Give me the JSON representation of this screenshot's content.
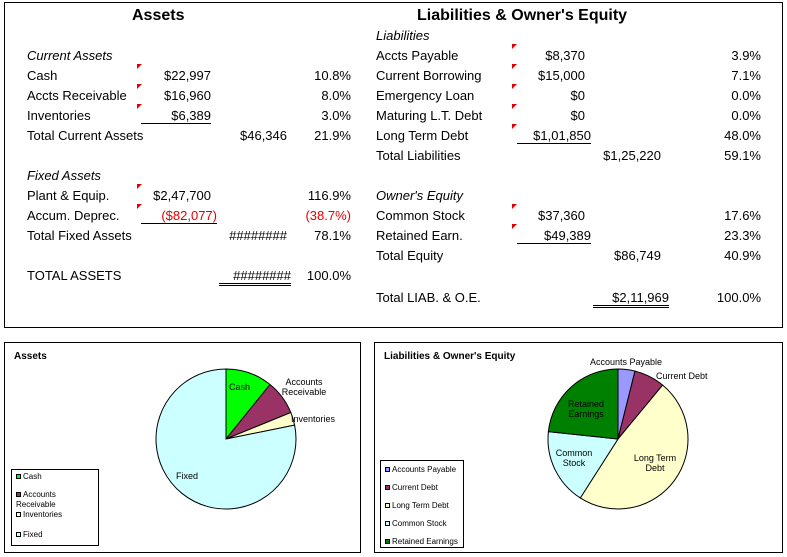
{
  "assets": {
    "title": "Assets",
    "current_header": "Current Assets",
    "rows": [
      {
        "label": "Cash",
        "value": "$22,997",
        "pct": "10.8%"
      },
      {
        "label": "Accts Receivable",
        "value": "$16,960",
        "pct": "8.0%"
      },
      {
        "label": "Inventories",
        "value": "$6,389",
        "pct": "3.0%"
      }
    ],
    "total_current": {
      "label": "Total Current Assets",
      "value": "$46,346",
      "pct": "21.9%"
    },
    "fixed_header": "Fixed Assets",
    "fixed_rows": [
      {
        "label": "Plant & Equip.",
        "value": "$2,47,700",
        "pct": "116.9%"
      },
      {
        "label": "Accum. Deprec.",
        "value": "($82,077)",
        "pct": "(38.7%)"
      }
    ],
    "total_fixed": {
      "label": "Total Fixed Assets",
      "value": "########",
      "pct": "78.1%"
    },
    "total_assets": {
      "label": "TOTAL ASSETS",
      "value": "########",
      "pct": "100.0%"
    }
  },
  "liabilities": {
    "title": "Liabilities & Owner's Equity",
    "liab_header": "Liabilities",
    "rows": [
      {
        "label": "Accts Payable",
        "value": "$8,370",
        "pct": "3.9%"
      },
      {
        "label": "Current Borrowing",
        "value": "$15,000",
        "pct": "7.1%"
      },
      {
        "label": "Emergency Loan",
        "value": "$0",
        "pct": "0.0%"
      },
      {
        "label": "Maturing L.T. Debt",
        "value": "$0",
        "pct": "0.0%"
      },
      {
        "label": "Long Term Debt",
        "value": "$1,01,850",
        "pct": "48.0%"
      }
    ],
    "total_liab": {
      "label": "Total Liabilities",
      "value": "$1,25,220",
      "pct": "59.1%"
    },
    "equity_header": "Owner's Equity",
    "equity_rows": [
      {
        "label": "Common Stock",
        "value": "$37,360",
        "pct": "17.6%"
      },
      {
        "label": "Retained Earn.",
        "value": "$49,389",
        "pct": "23.3%"
      }
    ],
    "total_equity": {
      "label": "Total Equity",
      "value": "$86,749",
      "pct": "40.9%"
    },
    "total_liab_oe": {
      "label": "Total LIAB. & O.E.",
      "value": "$2,11,969",
      "pct": "100.0%"
    }
  },
  "chart_data": [
    {
      "type": "pie",
      "title": "Assets",
      "categories": [
        "Cash",
        "Accounts Receivable",
        "Inventories",
        "Fixed"
      ],
      "slice_labels": [
        "Cash",
        "Accounts Receivable",
        "Inventories",
        "Fixed"
      ],
      "legend_labels": [
        "Cash",
        "Accounts Receivable",
        "Inventories",
        "Fixed"
      ],
      "values": [
        10.8,
        8.0,
        3.0,
        78.1
      ],
      "colors": [
        "#00ff00",
        "#993366",
        "#ffffcc",
        "#ccffff"
      ],
      "legend": "bottom-left"
    },
    {
      "type": "pie",
      "title": "Liabilities & Owner's Equity",
      "categories": [
        "Accounts Payable",
        "Current Debt",
        "Long Term Debt",
        "Common Stock",
        "Retained Earnings"
      ],
      "slice_labels": [
        "Accounts Payable",
        "Current Debt",
        "Long Term Debt",
        "Common Stock",
        "Retained Earnings"
      ],
      "legend_labels": [
        "Accounts Payable",
        "Current Debt",
        "Long Term Debt",
        "Common Stock",
        "Retained Earnings"
      ],
      "values": [
        3.9,
        7.1,
        48.0,
        17.6,
        23.3
      ],
      "colors": [
        "#9999ff",
        "#993366",
        "#ffffcc",
        "#ccffff",
        "#008000"
      ],
      "legend": "bottom-left"
    }
  ]
}
